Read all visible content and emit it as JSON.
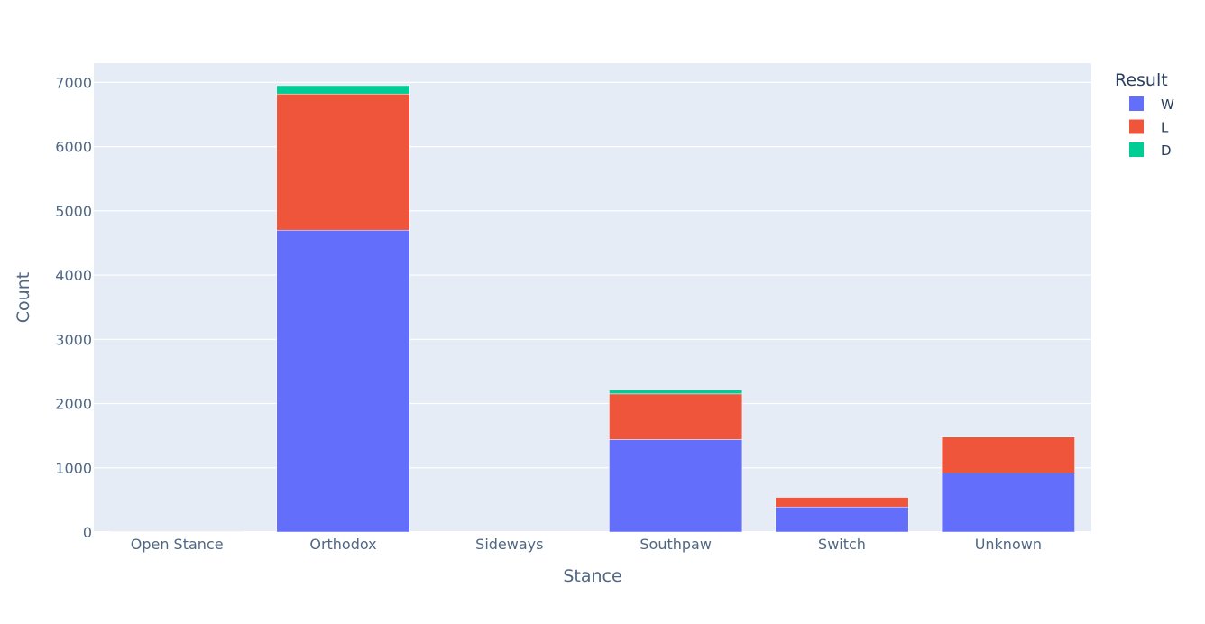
{
  "chart_data": {
    "type": "bar",
    "barmode": "stack",
    "categories": [
      "Open Stance",
      "Orthodox",
      "Sideways",
      "Southpaw",
      "Switch",
      "Unknown"
    ],
    "series": [
      {
        "name": "W",
        "color": "#636efa",
        "values": [
          5,
          4700,
          3,
          1440,
          390,
          920
        ]
      },
      {
        "name": "L",
        "color": "#ef553b",
        "values": [
          3,
          2120,
          2,
          710,
          150,
          560
        ]
      },
      {
        "name": "D",
        "color": "#00cc96",
        "values": [
          0,
          130,
          0,
          60,
          0,
          5
        ]
      }
    ],
    "xlabel": "Stance",
    "ylabel": "Count",
    "ylim": [
      0,
      7300
    ],
    "yticks": [
      0,
      1000,
      2000,
      3000,
      4000,
      5000,
      6000,
      7000
    ],
    "grid": true,
    "legend": {
      "title": "Result",
      "position": "top-right"
    },
    "plot_background": "#e5ecf6"
  }
}
